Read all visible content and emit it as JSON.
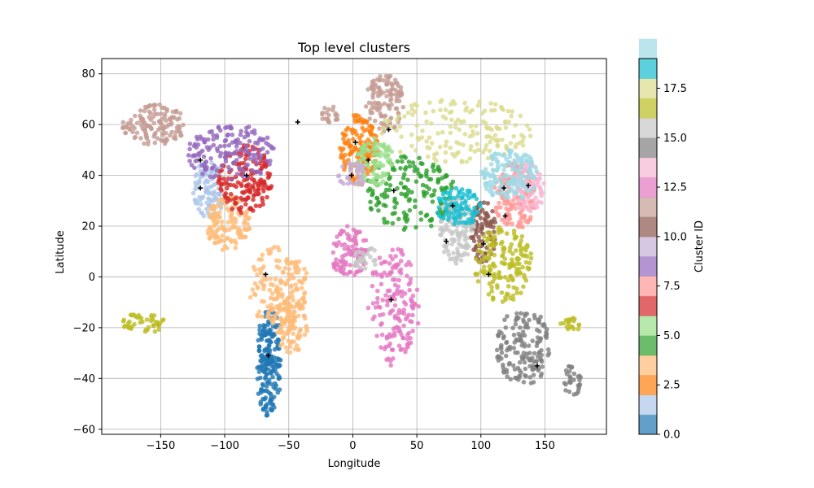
{
  "chart_data": {
    "type": "scatter",
    "title": "Top level clusters",
    "xlabel": "Longitude",
    "ylabel": "Latitude",
    "xlim": [
      -196,
      198
    ],
    "ylim": [
      -62,
      86
    ],
    "xticks": [
      -150,
      -100,
      -50,
      0,
      50,
      100,
      150
    ],
    "yticks": [
      -60,
      -40,
      -20,
      0,
      20,
      40,
      60,
      80
    ],
    "grid": true,
    "colorbar": {
      "label": "Cluster ID",
      "range": [
        0,
        19
      ],
      "ticks": [
        "0.0",
        "2.5",
        "5.0",
        "7.5",
        "10.0",
        "12.5",
        "15.0",
        "17.5"
      ],
      "tick_values": [
        0,
        2.5,
        5,
        7.5,
        10,
        12.5,
        15,
        17.5
      ],
      "colors": [
        "#1f77b4",
        "#aec7e8",
        "#ff7f0e",
        "#ffbb78",
        "#2ca02c",
        "#98df8a",
        "#d62728",
        "#ff9896",
        "#9467bd",
        "#c5b0d5",
        "#8c564b",
        "#c49c94",
        "#e377c2",
        "#f7b6d2",
        "#7f7f7f",
        "#c7c7c7",
        "#bcbd22",
        "#dbdb8d",
        "#17becf",
        "#9edae5"
      ]
    },
    "clusters": [
      {
        "id": 0,
        "centroid": [
          -66,
          -31
        ],
        "regions": [
          [
            -74,
            -56,
            -40,
            -12
          ],
          [
            -75,
            -56,
            -55,
            -20
          ]
        ]
      },
      {
        "id": 1,
        "centroid": [
          -119,
          35
        ],
        "regions": [
          [
            -125,
            -100,
            23,
            46
          ]
        ]
      },
      {
        "id": 2,
        "centroid": [
          2,
          53
        ],
        "regions": [
          [
            -10,
            20,
            36,
            65
          ]
        ]
      },
      {
        "id": 3,
        "centroid": [
          -68,
          1
        ],
        "regions": [
          [
            -115,
            -80,
            10,
            32
          ],
          [
            -82,
            -34,
            -20,
            12
          ],
          [
            -62,
            -35,
            -30,
            -8
          ]
        ]
      },
      {
        "id": 4,
        "centroid": [
          32,
          34
        ],
        "regions": [
          [
            10,
            80,
            18,
            48
          ]
        ]
      },
      {
        "id": 5,
        "centroid": [
          12,
          46
        ],
        "regions": [
          [
            3,
            32,
            36,
            55
          ]
        ]
      },
      {
        "id": 6,
        "centroid": [
          -83,
          40
        ],
        "regions": [
          [
            -105,
            -63,
            25,
            52
          ]
        ]
      },
      {
        "id": 7,
        "centroid": [
          119,
          24
        ],
        "regions": [
          [
            110,
            143,
            18,
            45
          ]
        ]
      },
      {
        "id": 8,
        "centroid": [
          -119,
          46
        ],
        "regions": [
          [
            -130,
            -60,
            38,
            60
          ]
        ]
      },
      {
        "id": 9,
        "centroid": [
          -1,
          40
        ],
        "regions": [
          [
            -12,
            12,
            35,
            45
          ]
        ]
      },
      {
        "id": 10,
        "centroid": [
          102,
          13
        ],
        "regions": [
          [
            92,
            112,
            5,
            30
          ]
        ]
      },
      {
        "id": 11,
        "centroid": [
          -43,
          61
        ],
        "regions": [
          [
            -180,
            -130,
            52,
            68
          ],
          [
            -25,
            -10,
            60,
            68
          ],
          [
            10,
            40,
            57,
            80
          ]
        ]
      },
      {
        "id": 12,
        "centroid": [
          30,
          -9
        ],
        "regions": [
          [
            -18,
            12,
            0,
            20
          ],
          [
            12,
            52,
            -35,
            12
          ]
        ]
      },
      {
        "id": 13,
        "centroid": [
          137,
          36
        ],
        "regions": [
          [
            125,
            150,
            25,
            45
          ]
        ]
      },
      {
        "id": 14,
        "centroid": [
          144,
          -35
        ],
        "regions": [
          [
            112,
            154,
            -43,
            -12
          ],
          [
            165,
            178,
            -48,
            -34
          ]
        ]
      },
      {
        "id": 15,
        "centroid": [
          73,
          14
        ],
        "regions": [
          [
            68,
            95,
            5,
            33
          ],
          [
            0,
            20,
            3,
            12
          ]
        ]
      },
      {
        "id": 16,
        "centroid": [
          106,
          1
        ],
        "regions": [
          [
            95,
            140,
            -10,
            20
          ],
          [
            -180,
            -145,
            -22,
            -14
          ],
          [
            160,
            180,
            -22,
            -16
          ]
        ]
      },
      {
        "id": 17,
        "centroid": [
          28,
          58
        ],
        "regions": [
          [
            20,
            140,
            45,
            70
          ]
        ]
      },
      {
        "id": 18,
        "centroid": [
          78,
          28
        ],
        "regions": [
          [
            65,
            100,
            20,
            35
          ]
        ]
      },
      {
        "id": 19,
        "centroid": [
          118,
          35
        ],
        "regions": [
          [
            100,
            145,
            30,
            50
          ]
        ]
      }
    ]
  }
}
